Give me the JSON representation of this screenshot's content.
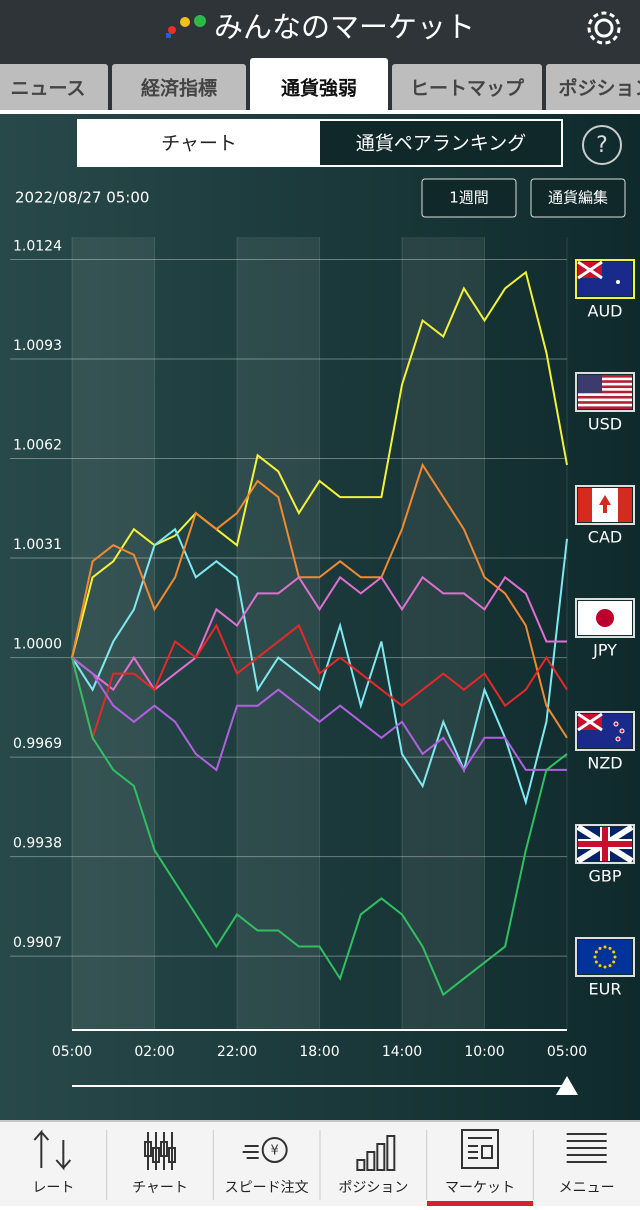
{
  "header": {
    "title": "みんなのマーケット"
  },
  "tabs": [
    "ニュース",
    "経済指標",
    "通貨強弱",
    "ヒートマップ",
    "ポジション"
  ],
  "segments": [
    "チャート",
    "通貨ペアランキング"
  ],
  "help": "?",
  "date": "2022/08/27 05:00",
  "buttons": [
    "1週間",
    "通貨編集"
  ],
  "chart_data": {
    "type": "line",
    "categories": [
      "05:00",
      null,
      null,
      null,
      "02:00",
      null,
      null,
      null,
      "22:00",
      null,
      null,
      null,
      "18:00",
      null,
      null,
      null,
      "14:00",
      null,
      null,
      null,
      "10:00",
      null,
      null,
      null,
      "05:00"
    ],
    "ylim": [
      0.9884,
      1.0131
    ],
    "yticks": [
      0.9907,
      0.9938,
      0.9969,
      {
        "value": 1,
        "label": "1.0000"
      },
      1.0031,
      1.0062,
      1.0093,
      1.0124
    ],
    "grid": true,
    "series": [
      {
        "name": "AUD",
        "color": "#f2f23a",
        "values": [
          1.0,
          1.0025,
          1.003,
          1.004,
          1.0035,
          1.0038,
          1.0045,
          1.004,
          1.0035,
          1.0063,
          1.0058,
          1.0045,
          1.0055,
          1.005,
          1.005,
          1.005,
          1.0085,
          1.0105,
          1.01,
          1.0115,
          1.0105,
          1.0115,
          1.012,
          1.0095,
          1.006
        ]
      },
      {
        "name": "USD",
        "color": "#7fe8f0",
        "values": [
          1.0,
          0.999,
          1.0005,
          1.0015,
          1.0035,
          1.004,
          1.0025,
          1.003,
          1.0025,
          0.999,
          1.0,
          0.9995,
          0.999,
          1.001,
          0.9985,
          1.0005,
          0.997,
          0.996,
          0.998,
          0.9965,
          0.999,
          0.9975,
          0.9955,
          0.998,
          1.0037
        ]
      },
      {
        "name": "CAD",
        "color": "#f08a30",
        "values": [
          1.0,
          1.003,
          1.0035,
          1.0032,
          1.0015,
          1.0025,
          1.0045,
          1.004,
          1.0045,
          1.0055,
          1.005,
          1.0025,
          1.0025,
          1.003,
          1.0025,
          1.0025,
          1.004,
          1.006,
          1.005,
          1.004,
          1.0025,
          1.002,
          1.001,
          0.9985,
          0.9975
        ]
      },
      {
        "name": "JPY",
        "color": "#e070d0",
        "values": [
          1.0,
          0.9995,
          0.999,
          1.0,
          0.999,
          0.9995,
          1.0,
          1.0015,
          1.001,
          1.002,
          1.002,
          1.0025,
          1.0015,
          1.0025,
          1.002,
          1.0025,
          1.0015,
          1.0025,
          1.002,
          1.002,
          1.0015,
          1.0025,
          1.002,
          1.0005,
          1.0005
        ]
      },
      {
        "name": "NZD",
        "color": "#e82828",
        "values": [
          1.0,
          0.9975,
          0.9995,
          0.9995,
          0.999,
          1.0005,
          1.0,
          1.001,
          0.9995,
          1.0,
          1.0005,
          1.001,
          0.9995,
          1.0,
          0.9995,
          0.999,
          0.9985,
          0.999,
          0.9995,
          0.999,
          0.9995,
          0.9985,
          0.999,
          1.0,
          0.999
        ]
      },
      {
        "name": "GBP",
        "color": "#b060e0",
        "values": [
          1.0,
          0.9995,
          0.9985,
          0.998,
          0.9985,
          0.998,
          0.997,
          0.9965,
          0.9985,
          0.9985,
          0.999,
          0.9985,
          0.998,
          0.9985,
          0.998,
          0.9975,
          0.998,
          0.997,
          0.9975,
          0.9965,
          0.9975,
          0.9975,
          0.9965,
          0.9965,
          0.9965
        ]
      },
      {
        "name": "EUR",
        "color": "#30c060",
        "values": [
          1.0,
          0.9975,
          0.9965,
          0.996,
          0.994,
          0.993,
          0.992,
          0.991,
          0.992,
          0.9915,
          0.9915,
          0.991,
          0.991,
          0.99,
          0.992,
          0.9925,
          0.992,
          0.991,
          0.9895,
          0.99,
          0.9905,
          0.991,
          0.994,
          0.9965,
          0.997
        ]
      }
    ]
  },
  "nav": [
    "レート",
    "チャート",
    "スピード注文",
    "ポジション",
    "マーケット",
    "メニュー"
  ]
}
